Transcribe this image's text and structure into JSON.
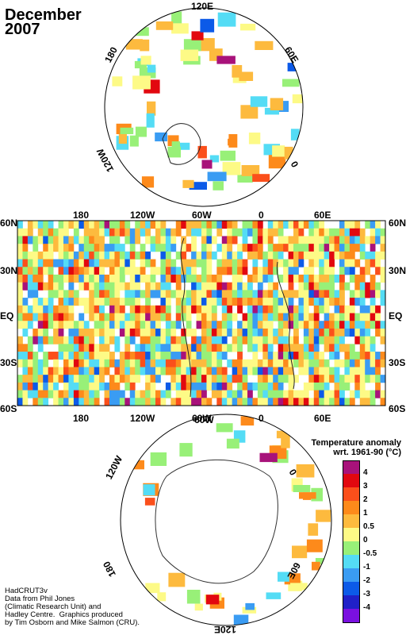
{
  "title": {
    "line1": "December",
    "line2": "2007"
  },
  "north_map": {
    "labels": {
      "top": "120E",
      "left": "180",
      "right": "60E",
      "bottom_right": "0",
      "bottom_left": "120W"
    }
  },
  "world_map": {
    "top_axis": [
      "180",
      "120W",
      "60W",
      "0",
      "60E"
    ],
    "bottom_axis": [
      "180",
      "120W",
      "60W",
      "0",
      "60E"
    ],
    "left_axis": [
      "60N",
      "30N",
      "EQ",
      "30S",
      "60S"
    ],
    "right_axis": [
      "60N",
      "30N",
      "EQ",
      "30S",
      "60S"
    ]
  },
  "south_map": {
    "labels": {
      "top": "60W",
      "left": "120W",
      "right": "0",
      "bottom_left": "180",
      "bottom_right": "60E",
      "bottom": "120E"
    }
  },
  "legend": {
    "title_line1": "Temperature anomaly",
    "title_line2": "wrt. 1961-90  (°C)",
    "ticks": [
      "4",
      "3",
      "2",
      "1",
      "0.5",
      "0",
      "-0.5",
      "-1",
      "-2",
      "-3",
      "-4"
    ],
    "colors": [
      "#a8127a",
      "#e2080f",
      "#fb4f1b",
      "#fd8a1b",
      "#fdba3e",
      "#fdfa86",
      "#98f078",
      "#54dcf5",
      "#3a9cf3",
      "#0c5ae8",
      "#2020c8",
      "#7a10e0"
    ]
  },
  "credit": "HadCRUT3v\nData from Phil Jones\n(Climatic Research Unit) and\nHadley Centre.  Graphics produced\nby Tim Osborn and Mike Salmon (CRU)."
}
